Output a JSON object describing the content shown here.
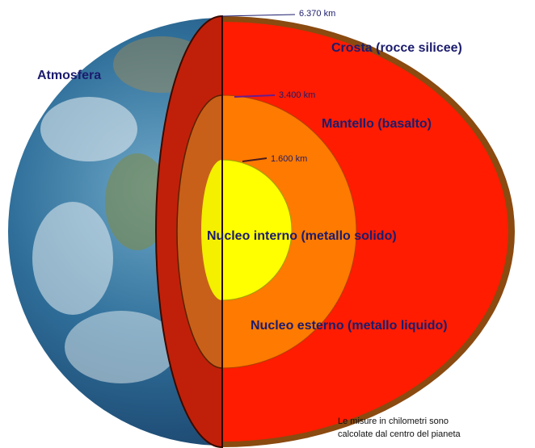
{
  "labels": {
    "atmosphere": "Atmosfera",
    "crust": "Crosta (rocce silicee)",
    "mantle": "Mantello (basalto)",
    "inner_core": "Nucleo interno (metallo solido)",
    "outer_core": "Nucleo esterno (metallo liquido)"
  },
  "radii": {
    "surface": "6.370 km",
    "mantle_base": "3.400 km",
    "inner_core": "1.600 km"
  },
  "note": [
    "Le misure in chilometri sono",
    "calcolate dal centro del pianeta"
  ]
}
